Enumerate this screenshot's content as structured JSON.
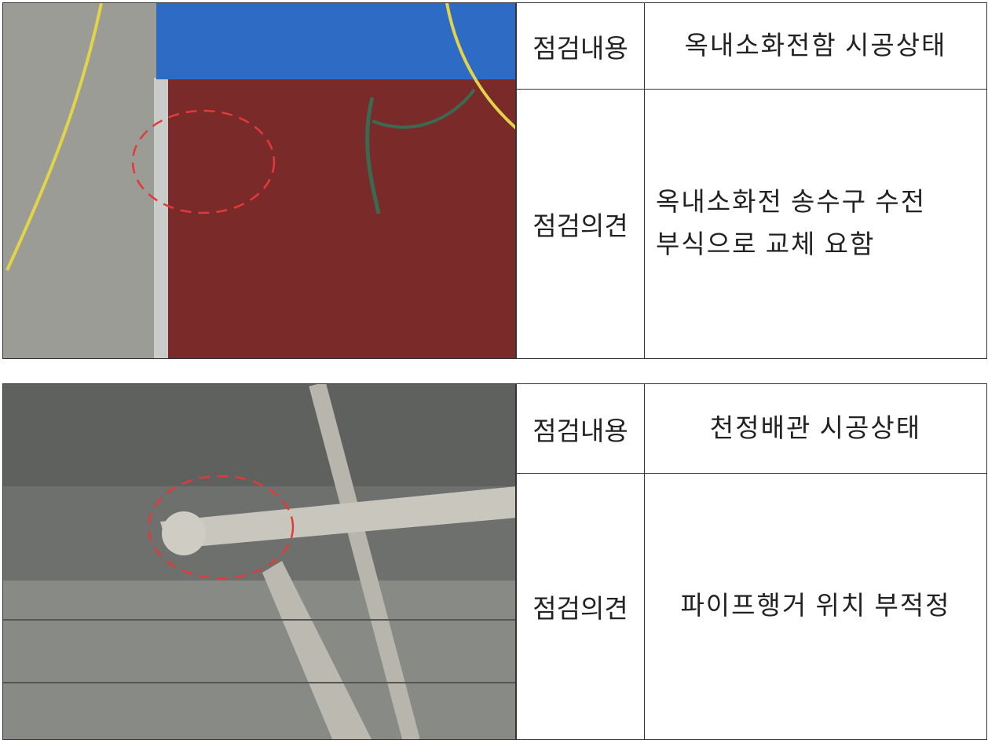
{
  "sections": [
    {
      "rows": [
        {
          "label": "점검내용",
          "content": [
            "옥내소화전함 시공상태"
          ]
        },
        {
          "label": "점검의견",
          "content": [
            "옥내소화전 송수구 수전",
            "부식으로 교체 요함"
          ]
        }
      ]
    },
    {
      "rows": [
        {
          "label": "점검내용",
          "content": [
            "천정배관 시공상태"
          ]
        },
        {
          "label": "점검의견",
          "content": [
            "파이프행거 위치 부적정"
          ]
        }
      ]
    }
  ]
}
